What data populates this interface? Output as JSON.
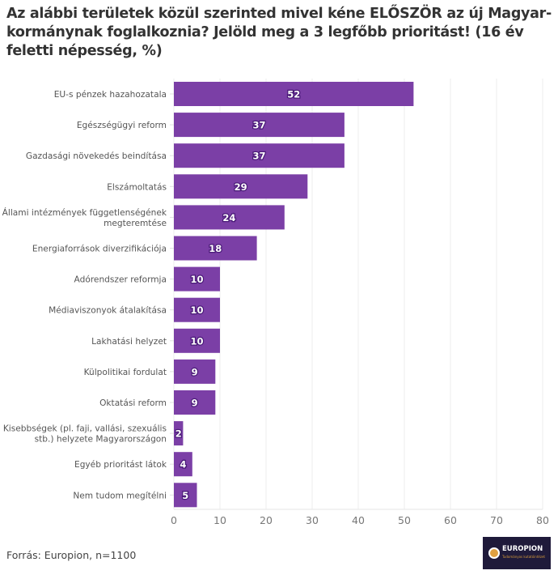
{
  "chart_data": {
    "type": "bar",
    "orientation": "horizontal",
    "title": "Az alábbi területek közül szerinted mivel kéne ELŐSZÖR az új Magyar-kormánynak foglalkoznia? Jelöld meg a 3 legfőbb prioritást! (16 év feletti népesség, %)",
    "categories": [
      [
        "EU-s pénzek hazahozatala"
      ],
      [
        "Egészségügyi reform"
      ],
      [
        "Gazdasági növekedés beindítása"
      ],
      [
        "Elszámoltatás"
      ],
      [
        "Állami intézmények függetlenségének",
        "megteremtése"
      ],
      [
        "Energiaforrások diverzifikációja"
      ],
      [
        "Adórendszer reformja"
      ],
      [
        "Médiaviszonyok átalakítása"
      ],
      [
        "Lakhatási helyzet"
      ],
      [
        "Külpolitikai fordulat"
      ],
      [
        "Oktatási reform"
      ],
      [
        "Kisebbségek (pl. faji, vallási, szexuális",
        "stb.) helyzete Magyarországon"
      ],
      [
        "Egyéb prioritást látok"
      ],
      [
        "Nem tudom megítélni"
      ]
    ],
    "values": [
      52,
      37,
      37,
      29,
      24,
      18,
      10,
      10,
      10,
      9,
      9,
      2,
      4,
      5
    ],
    "xlabel": "",
    "ylabel": "",
    "xlim": [
      0,
      80
    ],
    "xticks": [
      0,
      10,
      20,
      30,
      40,
      50,
      60,
      70,
      80
    ],
    "grid": true,
    "legend": "none",
    "bar_color": "#7b3fa6",
    "label_stroke_color": "#4a1a78"
  },
  "footer": {
    "source": "Forrás: Europion, n=1100",
    "logo_text": "EUROPION",
    "logo_subtext": "Tudományos kutatóintézet"
  }
}
